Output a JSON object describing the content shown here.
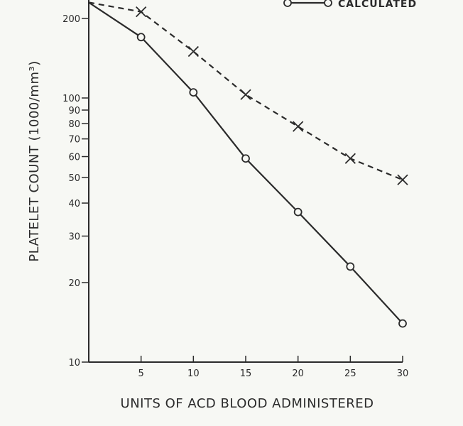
{
  "chart_data": {
    "type": "line",
    "title": "",
    "xlabel": "UNITS OF ACD BLOOD ADMINISTERED",
    "ylabel": "PLATELET COUNT (1000/mm³)",
    "yscale": "log",
    "xlim": [
      0,
      30
    ],
    "ylim": [
      10,
      230
    ],
    "x_ticks": [
      5,
      10,
      15,
      20,
      25,
      30
    ],
    "y_ticks": [
      10,
      20,
      30,
      40,
      50,
      60,
      70,
      80,
      90,
      100,
      200
    ],
    "grid": false,
    "legend": {
      "position": "top-right"
    },
    "series": [
      {
        "name": "",
        "marker": "x",
        "line": "dashed",
        "color": "#2b2b2b",
        "x": [
          0,
          5,
          10,
          15,
          20,
          25,
          30
        ],
        "y": [
          230,
          212,
          150,
          103,
          78,
          59,
          49
        ]
      },
      {
        "name": "CALCULATED",
        "marker": "o",
        "line": "solid",
        "color": "#2b2b2b",
        "x": [
          0,
          5,
          10,
          15,
          20,
          25,
          30
        ],
        "y": [
          230,
          170,
          105,
          59,
          37,
          23,
          14
        ]
      }
    ]
  }
}
